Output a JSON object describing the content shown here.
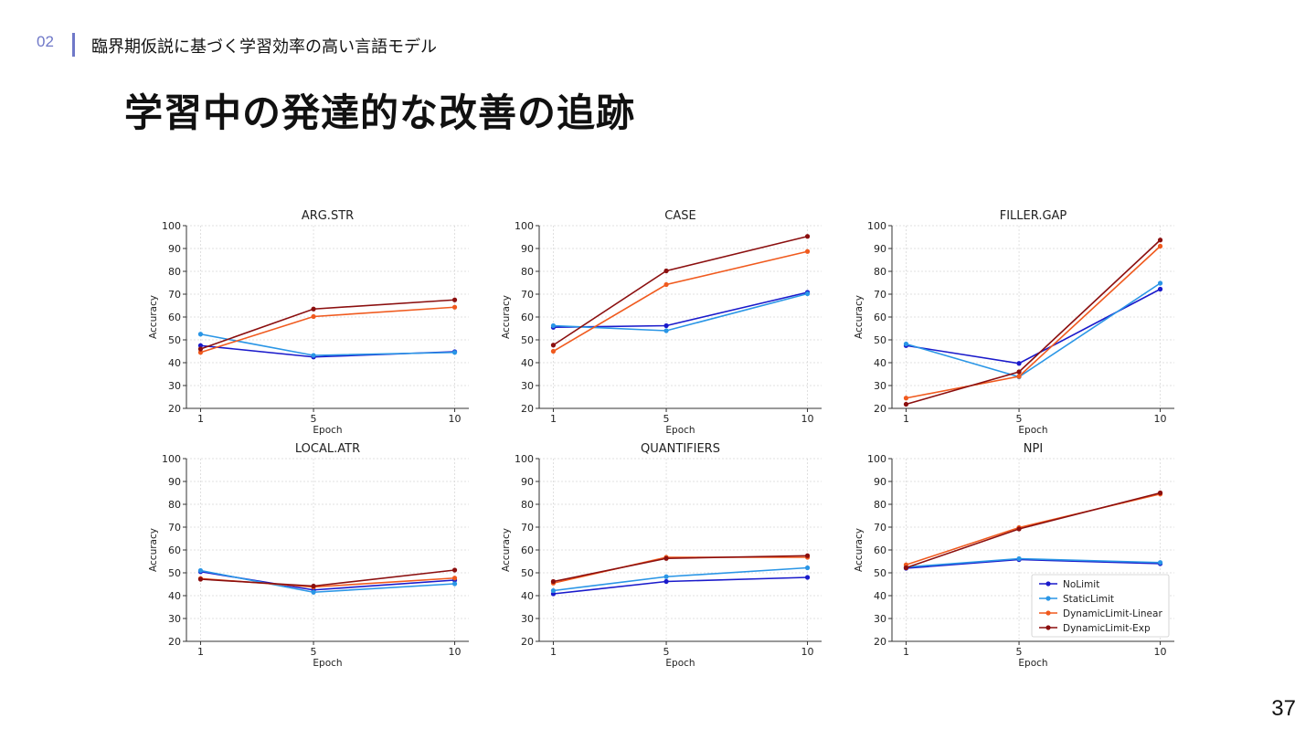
{
  "header": {
    "section_number": "02",
    "section_title": "臨界期仮説に基づく学習効率の高い言語モデル"
  },
  "slide": {
    "title": "学習中の発達的な改善の追跡",
    "page_number": "37"
  },
  "colors": {
    "accent": "#6f78c8",
    "NoLimit": "#1a1acb",
    "StaticLimit": "#2a96e6",
    "DynamicLimit-Linear": "#f05a1e",
    "DynamicLimit-Exp": "#8b0f0f"
  },
  "legend": [
    "NoLimit",
    "StaticLimit",
    "DynamicLimit-Linear",
    "DynamicLimit-Exp"
  ],
  "chart_data": [
    {
      "type": "line",
      "title": "ARG.STR",
      "xlabel": "Epoch",
      "ylabel": "Accuracy",
      "x": [
        1,
        5,
        10
      ],
      "ylim": [
        20,
        100
      ],
      "yticks": [
        20,
        30,
        40,
        50,
        60,
        70,
        80,
        90,
        100
      ],
      "grid": true,
      "series": [
        {
          "name": "NoLimit",
          "values": [
            47.5,
            42.5,
            44.8
          ]
        },
        {
          "name": "StaticLimit",
          "values": [
            52.5,
            43.2,
            44.5
          ]
        },
        {
          "name": "DynamicLimit-Linear",
          "values": [
            44.5,
            60.2,
            64.3
          ]
        },
        {
          "name": "DynamicLimit-Exp",
          "values": [
            46.0,
            63.5,
            67.5
          ]
        }
      ]
    },
    {
      "type": "line",
      "title": "CASE",
      "xlabel": "Epoch",
      "ylabel": "Accuracy",
      "x": [
        1,
        5,
        10
      ],
      "ylim": [
        20,
        100
      ],
      "yticks": [
        20,
        30,
        40,
        50,
        60,
        70,
        80,
        90,
        100
      ],
      "grid": true,
      "series": [
        {
          "name": "NoLimit",
          "values": [
            55.5,
            56.2,
            70.8
          ]
        },
        {
          "name": "StaticLimit",
          "values": [
            56.2,
            54.0,
            70.2
          ]
        },
        {
          "name": "DynamicLimit-Linear",
          "values": [
            45.0,
            74.2,
            88.7
          ]
        },
        {
          "name": "DynamicLimit-Exp",
          "values": [
            47.7,
            80.2,
            95.3
          ]
        }
      ]
    },
    {
      "type": "line",
      "title": "FILLER.GAP",
      "xlabel": "Epoch",
      "ylabel": "Accuracy",
      "x": [
        1,
        5,
        10
      ],
      "ylim": [
        20,
        100
      ],
      "yticks": [
        20,
        30,
        40,
        50,
        60,
        70,
        80,
        90,
        100
      ],
      "grid": true,
      "series": [
        {
          "name": "NoLimit",
          "values": [
            47.5,
            39.7,
            72.2
          ]
        },
        {
          "name": "StaticLimit",
          "values": [
            48.2,
            33.8,
            74.8
          ]
        },
        {
          "name": "DynamicLimit-Linear",
          "values": [
            24.5,
            34.0,
            91.0
          ]
        },
        {
          "name": "DynamicLimit-Exp",
          "values": [
            21.8,
            36.0,
            93.7
          ]
        }
      ]
    },
    {
      "type": "line",
      "title": "LOCAL.ATR",
      "xlabel": "Epoch",
      "ylabel": "Accuracy",
      "x": [
        1,
        5,
        10
      ],
      "ylim": [
        20,
        100
      ],
      "yticks": [
        20,
        30,
        40,
        50,
        60,
        70,
        80,
        90,
        100
      ],
      "grid": true,
      "series": [
        {
          "name": "NoLimit",
          "values": [
            50.5,
            42.5,
            46.8
          ]
        },
        {
          "name": "StaticLimit",
          "values": [
            51.0,
            41.5,
            45.2
          ]
        },
        {
          "name": "DynamicLimit-Linear",
          "values": [
            47.5,
            43.8,
            47.7
          ]
        },
        {
          "name": "DynamicLimit-Exp",
          "values": [
            47.2,
            44.2,
            51.2
          ]
        }
      ]
    },
    {
      "type": "line",
      "title": "QUANTIFIERS",
      "xlabel": "Epoch",
      "ylabel": "Accuracy",
      "x": [
        1,
        5,
        10
      ],
      "ylim": [
        20,
        100
      ],
      "yticks": [
        20,
        30,
        40,
        50,
        60,
        70,
        80,
        90,
        100
      ],
      "grid": true,
      "series": [
        {
          "name": "NoLimit",
          "values": [
            40.8,
            46.2,
            48.0
          ]
        },
        {
          "name": "StaticLimit",
          "values": [
            42.2,
            48.3,
            52.2
          ]
        },
        {
          "name": "DynamicLimit-Linear",
          "values": [
            45.5,
            56.8,
            56.8
          ]
        },
        {
          "name": "DynamicLimit-Exp",
          "values": [
            46.2,
            56.3,
            57.5
          ]
        }
      ]
    },
    {
      "type": "line",
      "title": "NPI",
      "xlabel": "Epoch",
      "ylabel": "Accuracy",
      "x": [
        1,
        5,
        10
      ],
      "ylim": [
        20,
        100
      ],
      "yticks": [
        20,
        30,
        40,
        50,
        60,
        70,
        80,
        90,
        100
      ],
      "grid": true,
      "legend_position": "lower-right",
      "series": [
        {
          "name": "NoLimit",
          "values": [
            52.0,
            55.8,
            54.0
          ]
        },
        {
          "name": "StaticLimit",
          "values": [
            52.5,
            56.2,
            54.5
          ]
        },
        {
          "name": "DynamicLimit-Linear",
          "values": [
            53.5,
            69.8,
            84.5
          ]
        },
        {
          "name": "DynamicLimit-Exp",
          "values": [
            52.2,
            69.2,
            85.0
          ]
        }
      ]
    }
  ]
}
